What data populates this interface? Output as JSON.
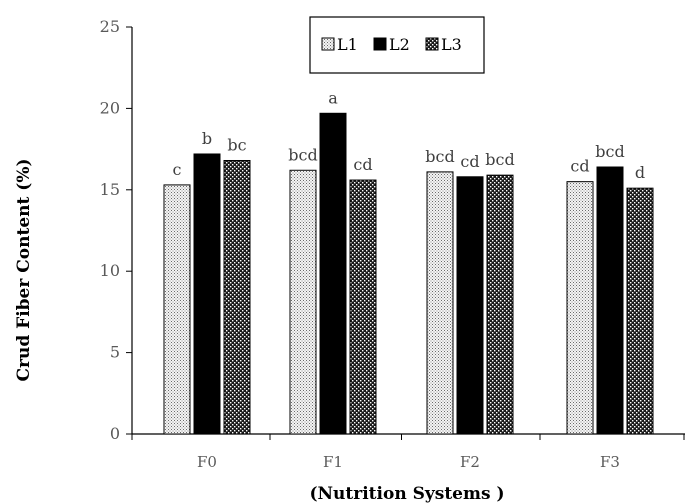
{
  "chart_data": {
    "type": "bar",
    "title": "",
    "xlabel": "(Nutrition  Systems )",
    "ylabel": "Crud  Fiber Content (%)",
    "ylim": [
      0,
      25
    ],
    "yticks": [
      "0",
      "5",
      "10",
      "15",
      "20",
      "25"
    ],
    "categories": [
      "F0",
      "F1",
      "F2",
      "F3"
    ],
    "series": [
      {
        "name": "L1",
        "values": [
          15.3,
          16.2,
          16.1,
          15.5
        ],
        "labels": [
          "c",
          "bcd",
          "bcd",
          "cd"
        ]
      },
      {
        "name": "L2",
        "values": [
          17.2,
          19.7,
          15.8,
          16.4
        ],
        "labels": [
          "b",
          "a",
          "cd",
          "bcd"
        ]
      },
      {
        "name": "L3",
        "values": [
          16.8,
          15.6,
          15.9,
          15.1
        ],
        "labels": [
          "bc",
          "cd",
          "bcd",
          "d"
        ]
      }
    ],
    "legend_position": "top-center",
    "grid": false
  },
  "colors": {
    "L1": "#d8d8d8",
    "L2": "#000000",
    "L3": "#3a3a3a",
    "axis": "#000000"
  }
}
